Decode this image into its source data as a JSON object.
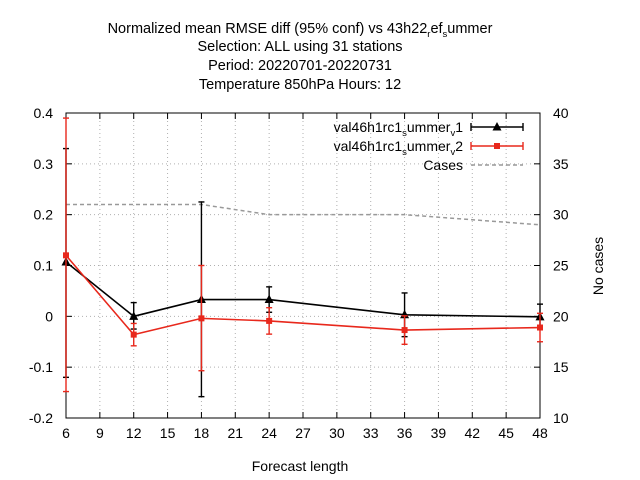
{
  "chart_data": {
    "type": "line",
    "title_lines": [
      "Selection: ALL using    31 stations",
      "Period: 20220701-20220731",
      "Temperature 850hPa   Hours:  12"
    ],
    "title_rich": {
      "prefix": "Normalized mean RMSE diff (95% conf) vs 43h22",
      "sub1": "r",
      "mid1": "ef",
      "sub2": "s",
      "suffix": "ummer"
    },
    "xlabel": "Forecast length",
    "ylabel_right": "No cases",
    "x_ticks": [
      6,
      9,
      12,
      15,
      18,
      21,
      24,
      27,
      30,
      33,
      36,
      39,
      42,
      45,
      48
    ],
    "xlim": [
      6,
      48
    ],
    "y_ticks": [
      -0.2,
      -0.1,
      0,
      0.1,
      0.2,
      0.3,
      0.4
    ],
    "y_tick_labels": [
      "-0.2",
      "-0.1",
      "0",
      "0.1",
      "0.2",
      "0.3",
      "0.4"
    ],
    "ylim": [
      -0.2,
      0.4
    ],
    "y2_ticks": [
      10,
      15,
      20,
      25,
      30,
      35,
      40
    ],
    "y2_tick_labels": [
      "10",
      "15",
      "20",
      "25",
      "30",
      "35",
      "40"
    ],
    "y2lim": [
      10,
      40
    ],
    "grid": true,
    "legend_position": "top-right",
    "series": [
      {
        "legend": {
          "prefix": "val46h1rc1",
          "sub1": "s",
          "mid1": "ummer",
          "sub2": "v",
          "suffix": "1"
        },
        "color": "#000000",
        "marker": "triangle",
        "x": [
          6,
          12,
          18,
          24,
          36,
          48
        ],
        "y": [
          0.107,
          0.0,
          0.033,
          0.033,
          0.003,
          -0.001
        ],
        "err_low": [
          -0.12,
          -0.025,
          -0.158,
          0.008,
          -0.04,
          -0.025
        ],
        "err_high": [
          0.33,
          0.027,
          0.225,
          0.058,
          0.046,
          0.024
        ]
      },
      {
        "legend": {
          "prefix": "val46h1rc1",
          "sub1": "s",
          "mid1": "ummer",
          "sub2": "v",
          "suffix": "2"
        },
        "color": "#e8281c",
        "marker": "square",
        "x": [
          6,
          12,
          18,
          24,
          36,
          48
        ],
        "y": [
          0.12,
          -0.036,
          -0.004,
          -0.009,
          -0.027,
          -0.022
        ],
        "err_low": [
          -0.148,
          -0.058,
          -0.107,
          -0.035,
          -0.055,
          -0.05
        ],
        "err_high": [
          0.39,
          -0.014,
          0.1,
          0.017,
          0.001,
          0.006
        ]
      }
    ],
    "cases": {
      "legend": "Cases",
      "color": "#999999",
      "x": [
        6,
        12,
        18,
        24,
        36,
        48
      ],
      "y": [
        31,
        31,
        31,
        30,
        30,
        29
      ]
    }
  }
}
